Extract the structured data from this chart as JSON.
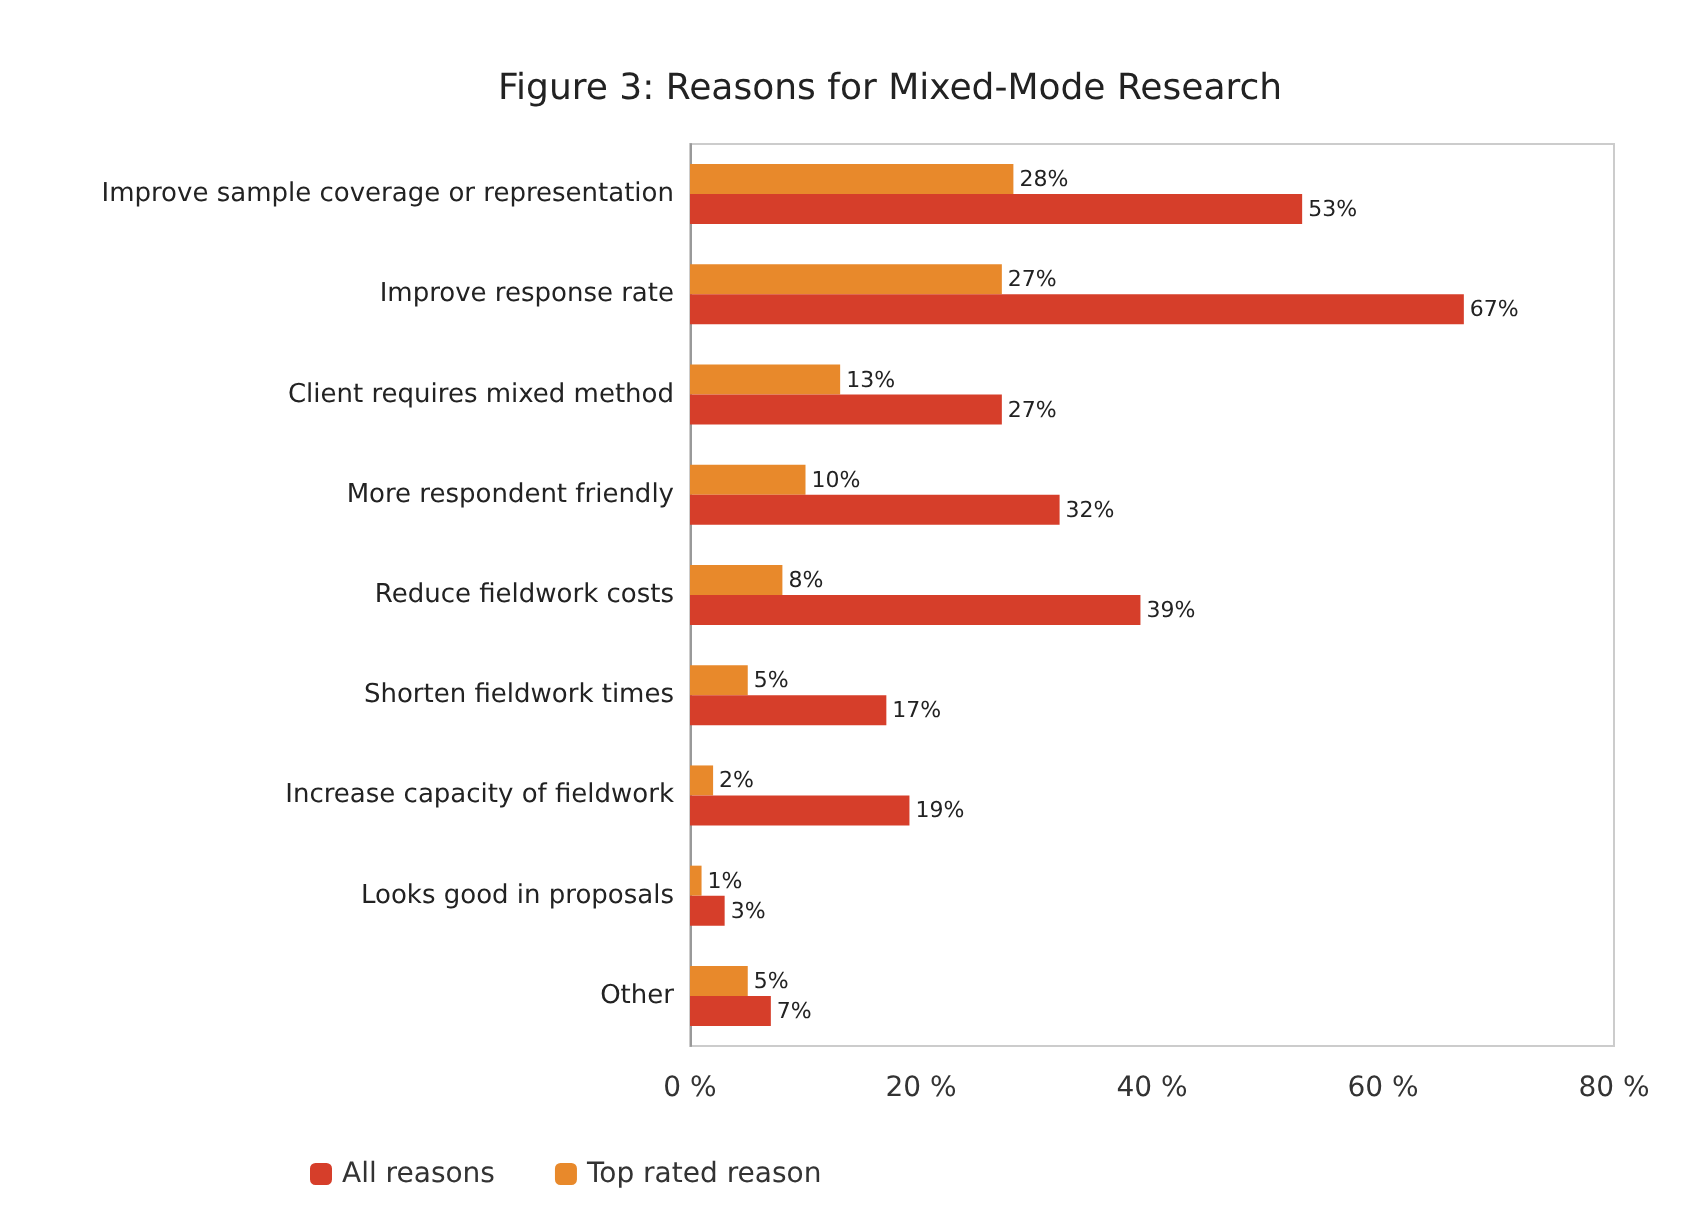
{
  "chart_data": {
    "type": "bar",
    "orientation": "horizontal",
    "title": "Figure 3: Reasons for Mixed-Mode Research",
    "categories": [
      "Improve sample coverage or representation",
      "Improve response rate",
      "Client requires mixed method",
      "More respondent friendly",
      "Reduce fieldwork costs",
      "Shorten fieldwork times",
      "Increase capacity of fieldwork",
      "Looks good in proposals",
      "Other"
    ],
    "series": [
      {
        "name": "Top rated reason",
        "color": "#e8892b",
        "values": [
          28,
          27,
          13,
          10,
          8,
          5,
          2,
          1,
          5
        ],
        "value_labels": [
          "28%",
          "27%",
          "13%",
          "10%",
          "8%",
          "5%",
          "2%",
          "1%",
          "5%"
        ]
      },
      {
        "name": "All reasons",
        "color": "#d63e2a",
        "values": [
          53,
          67,
          27,
          32,
          39,
          17,
          19,
          3,
          7
        ],
        "value_labels": [
          "53%",
          "67%",
          "27%",
          "32%",
          "39%",
          "17%",
          "19%",
          "3%",
          "7%"
        ]
      }
    ],
    "xlim": [
      0,
      80
    ],
    "xticks": [
      {
        "value": 0,
        "label": "0 %"
      },
      {
        "value": 20,
        "label": "20 %"
      },
      {
        "value": 40,
        "label": "40 %"
      },
      {
        "value": 60,
        "label": "60 %"
      },
      {
        "value": 80,
        "label": "80 %"
      }
    ],
    "grid": false,
    "legend": "bottom left"
  }
}
